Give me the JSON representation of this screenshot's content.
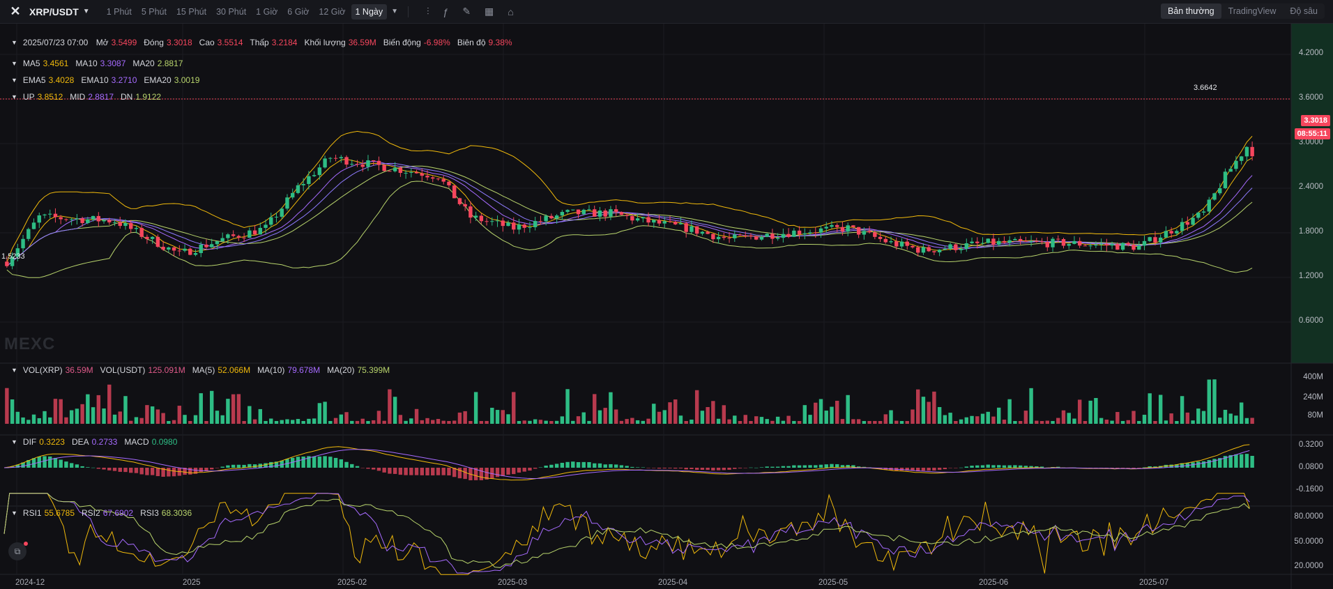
{
  "header": {
    "pair": "XRP/USDT",
    "intervals": [
      "1 Phút",
      "5 Phút",
      "15 Phút",
      "30 Phút",
      "1 Giờ",
      "6 Giờ",
      "12 Giờ",
      "1 Ngày"
    ],
    "active_interval": "1 Ngày",
    "views": [
      "Bản thường",
      "TradingView",
      "Độ sâu"
    ],
    "active_view": "Bản thường"
  },
  "icons": [
    "logo-icon",
    "candle-type-icon",
    "indicator-icon",
    "draw-icon",
    "layout-icon",
    "camera-icon"
  ],
  "ohlc": {
    "date": "2025/07/23 07:00",
    "open_label": "Mở",
    "open": "3.5499",
    "close_label": "Đóng",
    "close": "3.3018",
    "high_label": "Cao",
    "high": "3.5514",
    "low_label": "Thấp",
    "low": "3.2184",
    "vol_label": "Khối lượng",
    "vol": "36.59M",
    "change_label": "Biến động",
    "change": "-6.98%",
    "amp_label": "Biên độ",
    "amp": "9.38%"
  },
  "ma": {
    "ma5_label": "MA5",
    "ma5": "3.4561",
    "ma10_label": "MA10",
    "ma10": "3.3087",
    "ma20_label": "MA20",
    "ma20": "2.8817"
  },
  "ema": {
    "ema5_label": "EMA5",
    "ema5": "3.4028",
    "ema10_label": "EMA10",
    "ema10": "3.2710",
    "ema20_label": "EMA20",
    "ema20": "3.0019"
  },
  "boll": {
    "up_label": "UP",
    "up": "3.8512",
    "mid_label": "MID",
    "mid": "2.8817",
    "dn_label": "DN",
    "dn": "1.9122"
  },
  "vol": {
    "vxrp_label": "VOL(XRP)",
    "vxrp": "36.59M",
    "vusdt_label": "VOL(USDT)",
    "vusdt": "125.091M",
    "ma5_label": "MA(5)",
    "ma5": "52.066M",
    "ma10_label": "MA(10)",
    "ma10": "79.678M",
    "ma20_label": "MA(20)",
    "ma20": "75.399M"
  },
  "macd": {
    "dif_label": "DIF",
    "dif": "0.3223",
    "dea_label": "DEA",
    "dea": "0.2733",
    "macd_label": "MACD",
    "macd": "0.0980"
  },
  "rsi": {
    "rsi1_label": "RSI1",
    "rsi1": "55.6785",
    "rsi2_label": "RSI2",
    "rsi2": "67.6902",
    "rsi3_label": "RSI3",
    "rsi3": "68.3036"
  },
  "price_axis": [
    "4.2000",
    "3.6000",
    "3.0000",
    "2.4000",
    "1.8000",
    "1.2000",
    "0.6000"
  ],
  "vol_axis": [
    "400M",
    "240M",
    "80M"
  ],
  "macd_axis": [
    "0.3200",
    "0.0800",
    "-0.1600"
  ],
  "rsi_axis": [
    "80.0000",
    "50.0000",
    "20.0000"
  ],
  "date_axis": [
    "2024-12",
    "2025",
    "2025-02",
    "2025-03",
    "2025-04",
    "2025-05",
    "2025-06",
    "2025-07"
  ],
  "last_price": "3.3018",
  "countdown": "08:55:11",
  "high_marker": "3.6642",
  "low_marker": "1.5233",
  "watermark": "MEXC",
  "colors": {
    "up": "#2ebd85",
    "down": "#f6465d",
    "ma5": "#f0b90b",
    "ma10": "#a66bff",
    "ma20": "#b8d46c"
  }
}
